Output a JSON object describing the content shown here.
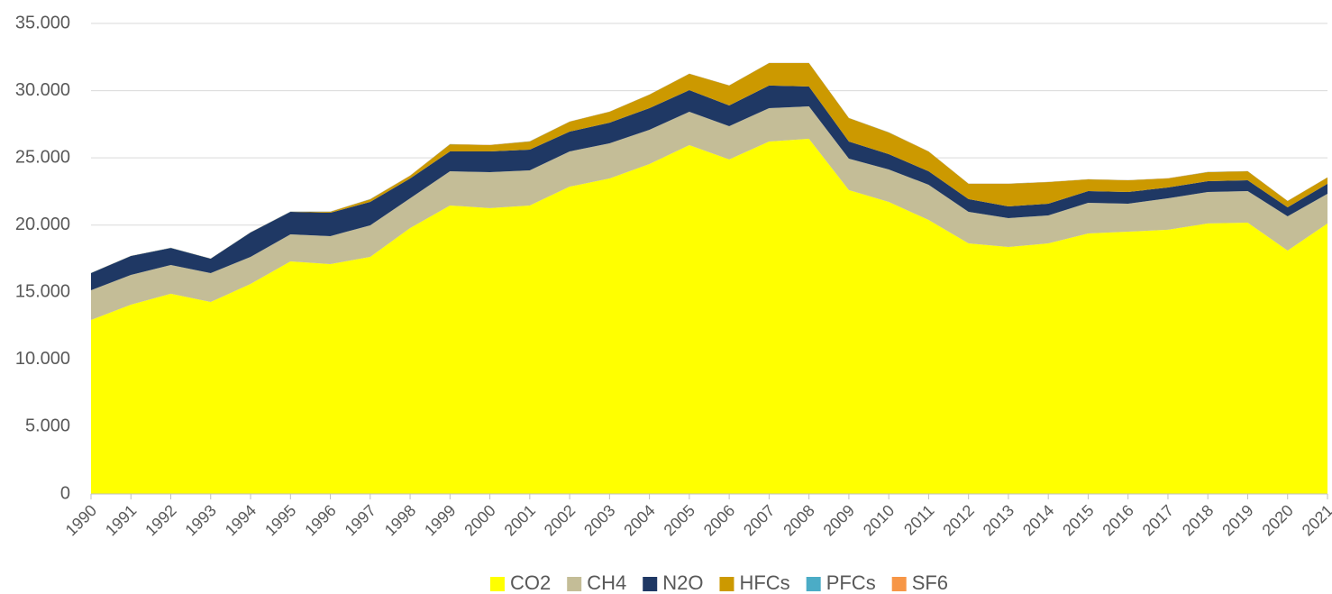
{
  "chart_data": {
    "type": "stacked_area",
    "categories": [
      "1990",
      "1991",
      "1992",
      "1993",
      "1994",
      "1995",
      "1996",
      "1997",
      "1998",
      "1999",
      "2000",
      "2001",
      "2002",
      "2003",
      "2004",
      "2005",
      "2006",
      "2007",
      "2008",
      "2009",
      "2010",
      "2011",
      "2012",
      "2013",
      "2014",
      "2015",
      "2016",
      "2017",
      "2018",
      "2019",
      "2020",
      "2021"
    ],
    "series": [
      {
        "name": "CO2",
        "color": "#ffff00",
        "values": [
          12940,
          14080,
          14890,
          14280,
          15620,
          17300,
          17100,
          17630,
          19780,
          21460,
          21260,
          21460,
          22860,
          23470,
          24540,
          25950,
          24880,
          26220,
          26420,
          22600,
          21720,
          20380,
          18640,
          18370,
          18640,
          19380,
          19510,
          19650,
          20120,
          20180,
          18100,
          20120
        ]
      },
      {
        "name": "CH4",
        "color": "#c4bd97",
        "values": [
          2210,
          2210,
          2140,
          2150,
          2010,
          2010,
          2080,
          2350,
          2210,
          2540,
          2680,
          2610,
          2620,
          2610,
          2550,
          2480,
          2480,
          2480,
          2410,
          2340,
          2420,
          2620,
          2350,
          2150,
          2080,
          2280,
          2080,
          2340,
          2340,
          2350,
          2550,
          2210
        ]
      },
      {
        "name": "N2O",
        "color": "#1f3864",
        "values": [
          1280,
          1410,
          1270,
          1070,
          1820,
          1680,
          1740,
          1740,
          1480,
          1480,
          1540,
          1540,
          1470,
          1540,
          1610,
          1610,
          1540,
          1680,
          1480,
          1280,
          1140,
          1000,
          940,
          870,
          870,
          870,
          870,
          810,
          810,
          800,
          670,
          740
        ]
      },
      {
        "name": "HFCs",
        "color": "#cc9900",
        "values": [
          0,
          0,
          0,
          0,
          0,
          0,
          70,
          200,
          200,
          530,
          470,
          610,
          740,
          810,
          1000,
          1210,
          1480,
          1670,
          1740,
          1740,
          1610,
          1470,
          1140,
          1680,
          1610,
          870,
          870,
          670,
          670,
          670,
          470,
          470
        ]
      },
      {
        "name": "PFCs",
        "color": "#4bacc6",
        "values": [
          10,
          10,
          10,
          10,
          10,
          10,
          10,
          10,
          10,
          10,
          10,
          10,
          10,
          10,
          10,
          10,
          10,
          10,
          10,
          10,
          10,
          10,
          10,
          10,
          10,
          10,
          10,
          10,
          10,
          10,
          10,
          10
        ]
      },
      {
        "name": "SF6",
        "color": "#f79646",
        "values": [
          10,
          10,
          10,
          10,
          10,
          10,
          10,
          10,
          10,
          10,
          10,
          10,
          10,
          10,
          10,
          10,
          10,
          10,
          10,
          10,
          10,
          10,
          10,
          10,
          10,
          10,
          10,
          10,
          10,
          10,
          10,
          10
        ]
      }
    ],
    "ylim": [
      0,
      35000
    ],
    "yticks": [
      0,
      {
        "value": 5000,
        "label": "5.000"
      },
      {
        "value": 10000,
        "label": "10.000"
      },
      {
        "value": 15000,
        "label": "15.000"
      },
      {
        "value": 20000,
        "label": "20.000"
      },
      {
        "value": 25000,
        "label": "25.000"
      },
      {
        "value": 30000,
        "label": "30.000"
      },
      {
        "value": 35000,
        "label": "35.000"
      }
    ],
    "grid": true,
    "legend": "bottom"
  }
}
